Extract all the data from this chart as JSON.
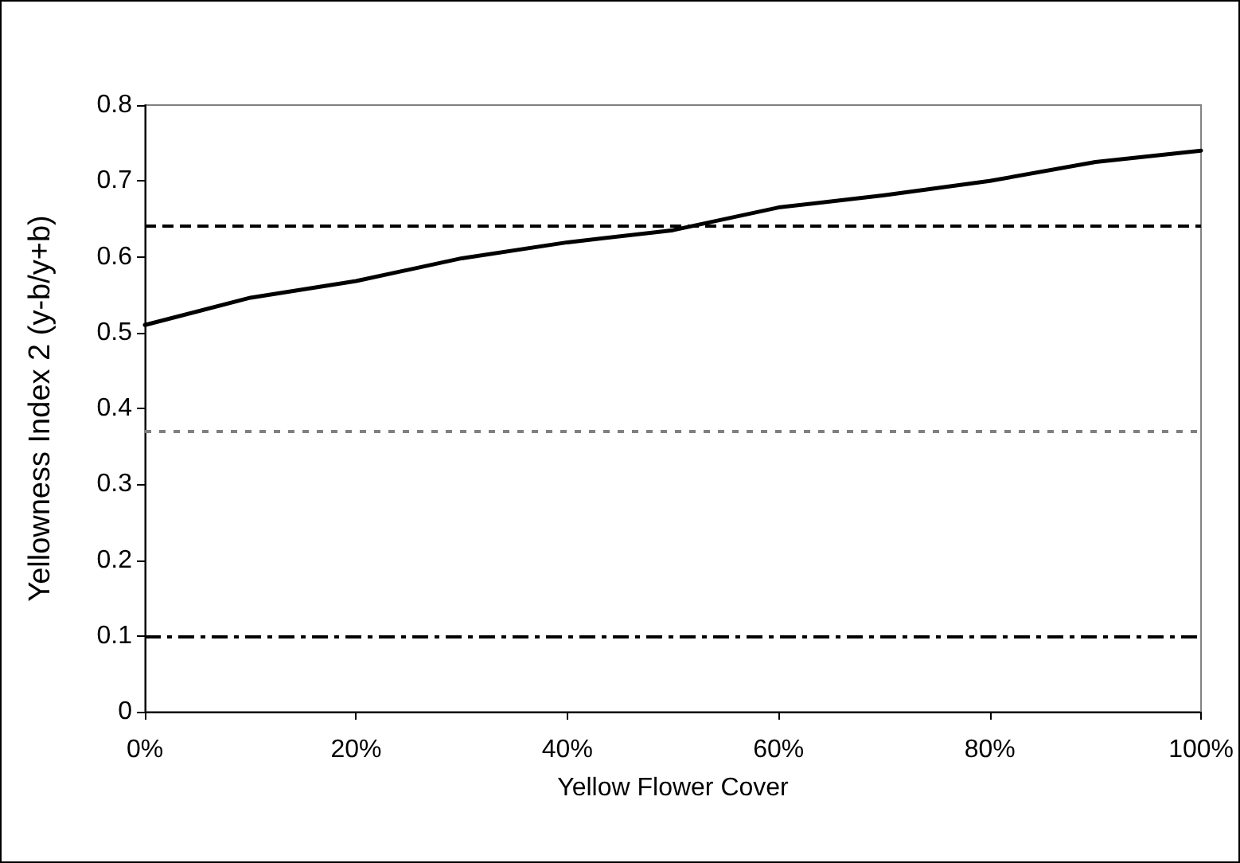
{
  "chart_data": {
    "type": "line",
    "xlabel": "Yellow Flower Cover",
    "ylabel": "Yellowness Index 2 (y-b/y+b)",
    "x": [
      0,
      10,
      20,
      30,
      40,
      50,
      60,
      70,
      80,
      90,
      100
    ],
    "series": [
      {
        "color": "#000000",
        "values": [
          0.51,
          0.546,
          0.568,
          0.598,
          0.619,
          0.635,
          0.665,
          0.681,
          0.7,
          0.725,
          0.74
        ]
      }
    ],
    "xlim": [
      0,
      100
    ],
    "xticks": [
      {
        "value": 0,
        "label": "0%"
      },
      {
        "value": 20,
        "label": "20%"
      },
      {
        "value": 40,
        "label": "40%"
      },
      {
        "value": 60,
        "label": "60%"
      },
      {
        "value": 80,
        "label": "80%"
      },
      {
        "value": 100,
        "label": "100%"
      }
    ],
    "ylim": [
      0,
      0.8
    ],
    "yticks": [
      0,
      0.1,
      0.2,
      0.3,
      0.4,
      0.5,
      0.6,
      0.7,
      0.8
    ],
    "ref_lines": [
      {
        "axis": "y",
        "value": 0.64,
        "color": "#000000",
        "line_style": "dashed"
      },
      {
        "axis": "y",
        "value": 0.372,
        "color": "#808080",
        "line_style": "dotted"
      },
      {
        "axis": "y",
        "value": 0.097,
        "color": "#000000",
        "line_style": "dashdot"
      }
    ],
    "grid": false,
    "marker": "none",
    "line_style": "solid"
  }
}
